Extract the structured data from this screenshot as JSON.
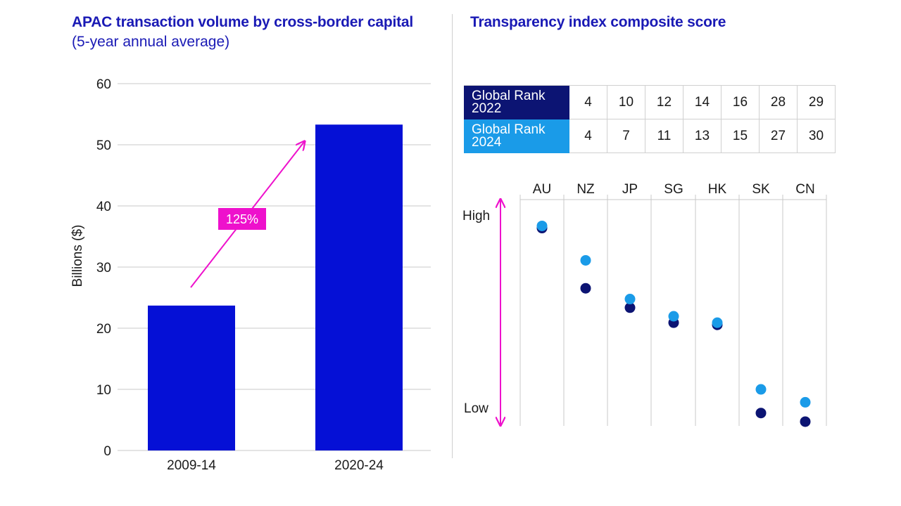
{
  "left_chart": {
    "title": "APAC transaction volume by cross-border capital",
    "subtitle": "(5-year annual average)"
  },
  "right_chart": {
    "title": "Transparency index composite score",
    "high_label": "High",
    "low_label": "Low"
  },
  "rank_table": {
    "rows": [
      {
        "label_line1": "Global Rank",
        "label_line2": "2022",
        "values": [
          "4",
          "10",
          "12",
          "14",
          "16",
          "28",
          "29"
        ],
        "color": "#0c1473"
      },
      {
        "label_line1": "Global Rank",
        "label_line2": "2024",
        "values": [
          "4",
          "7",
          "11",
          "13",
          "15",
          "27",
          "30"
        ],
        "color": "#1a9be8"
      }
    ]
  },
  "chart_data": [
    {
      "type": "bar",
      "title": "APAC transaction volume by cross-border capital",
      "subtitle": "(5-year annual average)",
      "categories": [
        "2009-14",
        "2020-24"
      ],
      "values": [
        23.7,
        53.3
      ],
      "ylabel": "Billions ($)",
      "ylim": [
        0,
        60
      ],
      "yticks": [
        0,
        10,
        20,
        30,
        40,
        50,
        60
      ],
      "grid": true,
      "bar_color": "#0510d6",
      "annotation": {
        "text": "125%",
        "color": "#ee11cc"
      }
    },
    {
      "type": "scatter",
      "title": "Transparency index composite score",
      "categories": [
        "AU",
        "NZ",
        "JP",
        "SG",
        "HK",
        "SK",
        "CN"
      ],
      "series": [
        {
          "values": [
            0.91,
            0.63,
            0.54,
            0.47,
            0.46,
            0.05,
            0.01
          ],
          "color": "#0c1473"
        },
        {
          "values": [
            0.92,
            0.76,
            0.58,
            0.5,
            0.47,
            0.16,
            0.1
          ],
          "color": "#1a9be8"
        }
      ],
      "ylim": [
        0,
        1
      ],
      "axis_color": "#ee11cc"
    }
  ]
}
